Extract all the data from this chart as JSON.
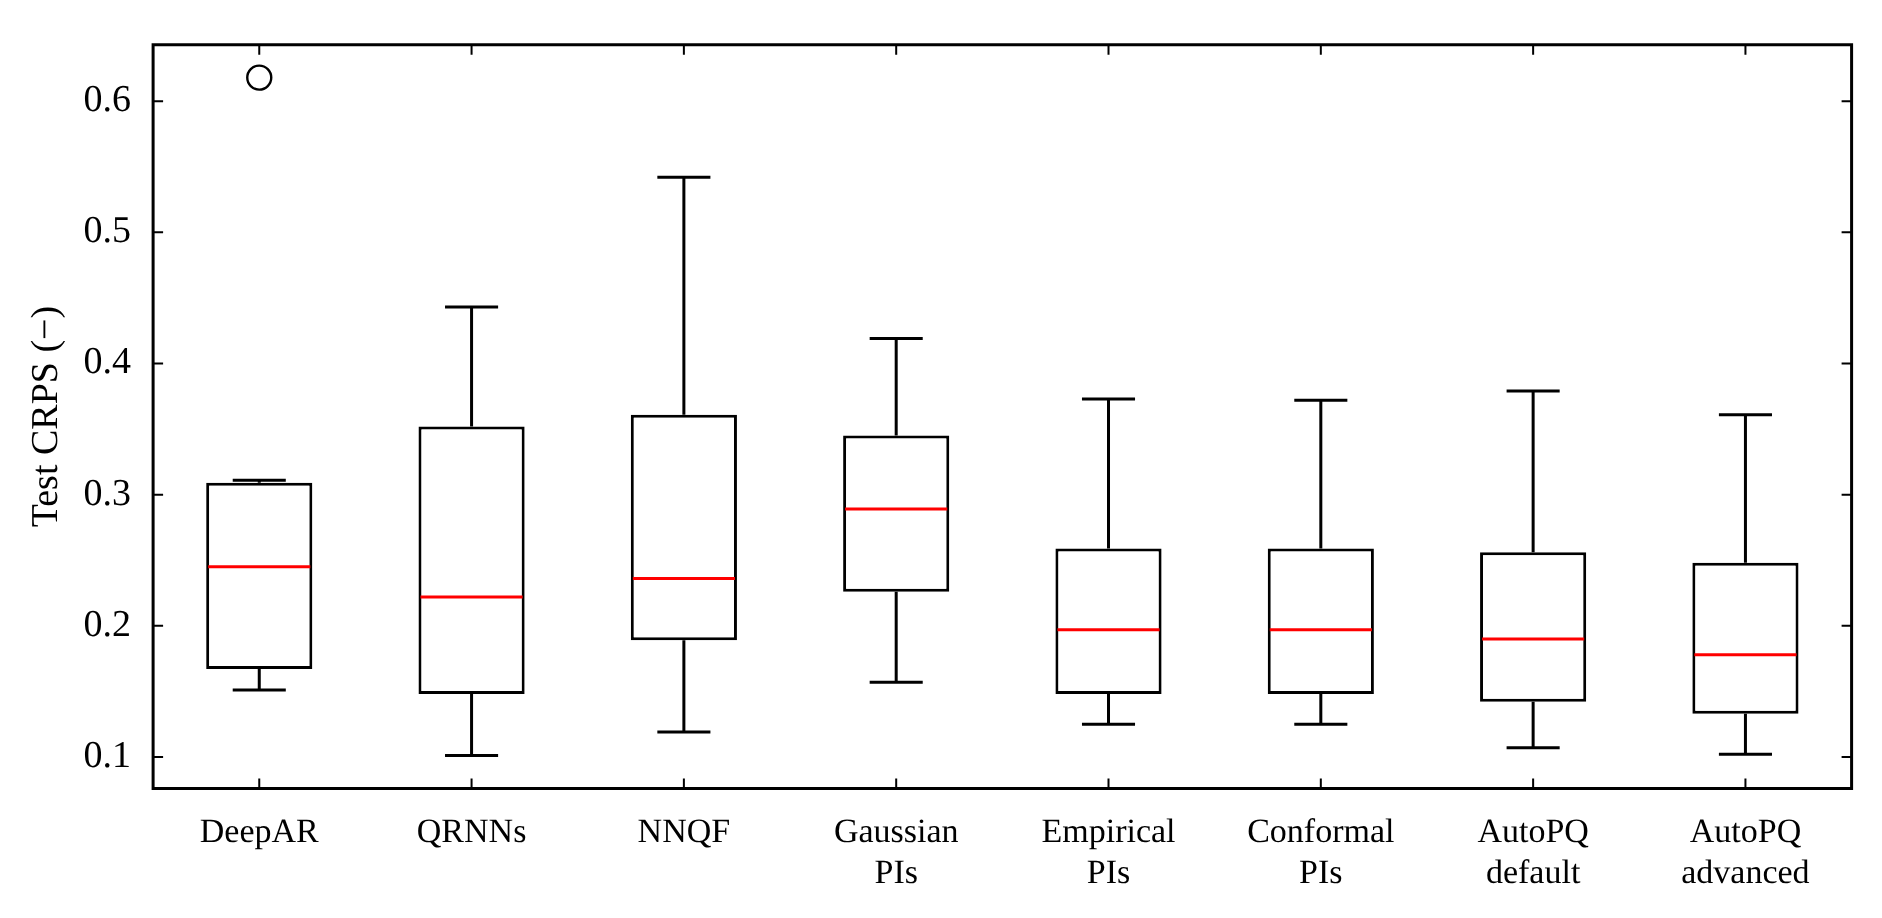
{
  "chart_data": {
    "type": "box",
    "ylabel": "Test CRPS (−)",
    "categories": [
      "DeepAR",
      "QRNNs",
      "NNQF",
      "Gaussian PIs",
      "Empirical PIs",
      "Conformal PIs",
      "AutoPQ default",
      "AutoPQ advanced"
    ],
    "color": "#000000",
    "ylim": [
      0.076,
      0.643
    ],
    "yticks": [
      0.1,
      0.2,
      0.3,
      0.4,
      0.5,
      0.6
    ],
    "boxes": [
      {
        "low": 0.151,
        "q1": 0.167,
        "median": 0.245,
        "q3": 0.309,
        "high": 0.311,
        "outliers": [
          0.618
        ]
      },
      {
        "low": 0.101,
        "q1": 0.148,
        "median": 0.222,
        "q3": 0.352,
        "high": 0.443
      },
      {
        "low": 0.119,
        "q1": 0.189,
        "median": 0.236,
        "q3": 0.361,
        "high": 0.542
      },
      {
        "low": 0.157,
        "q1": 0.226,
        "median": 0.289,
        "q3": 0.345,
        "high": 0.419
      },
      {
        "low": 0.125,
        "q1": 0.148,
        "median": 0.197,
        "q3": 0.259,
        "high": 0.373
      },
      {
        "low": 0.125,
        "q1": 0.148,
        "median": 0.197,
        "q3": 0.259,
        "high": 0.372
      },
      {
        "low": 0.107,
        "q1": 0.142,
        "median": 0.19,
        "q3": 0.256,
        "high": 0.379
      },
      {
        "low": 0.102,
        "q1": 0.133,
        "median": 0.178,
        "q3": 0.248,
        "high": 0.361
      }
    ]
  }
}
